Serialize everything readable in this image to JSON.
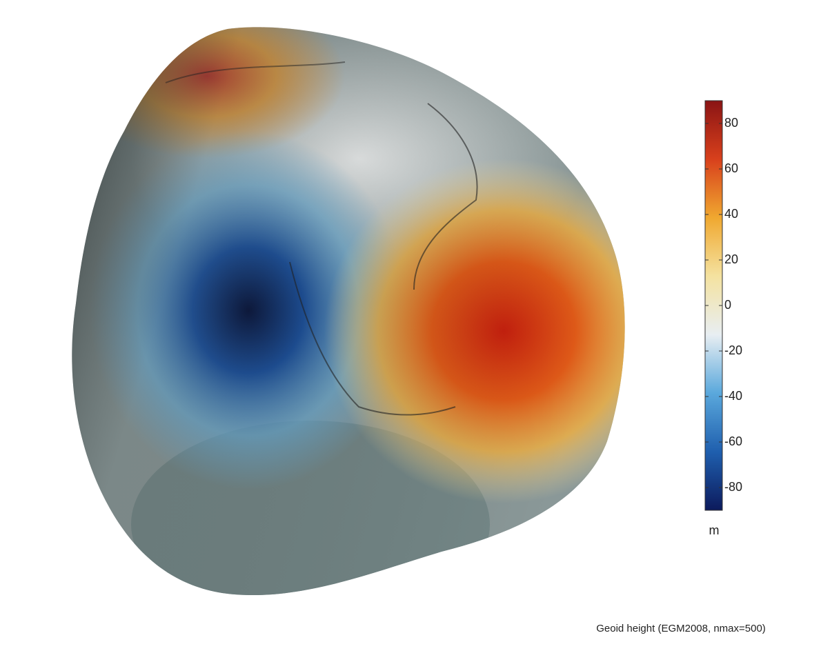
{
  "colorbar": {
    "lim": [
      -90,
      90
    ],
    "ticks": [
      -80,
      -60,
      -40,
      -20,
      0,
      20,
      40,
      60,
      80
    ],
    "unit": "m",
    "colors": [
      "#0c1a5c",
      "#1f5fae",
      "#5aa8dc",
      "#e8eef2",
      "#f4e2a0",
      "#f0a830",
      "#d8401c",
      "#8a1414"
    ]
  },
  "caption": "Geoid height (EGM2008, nmax=500)"
}
